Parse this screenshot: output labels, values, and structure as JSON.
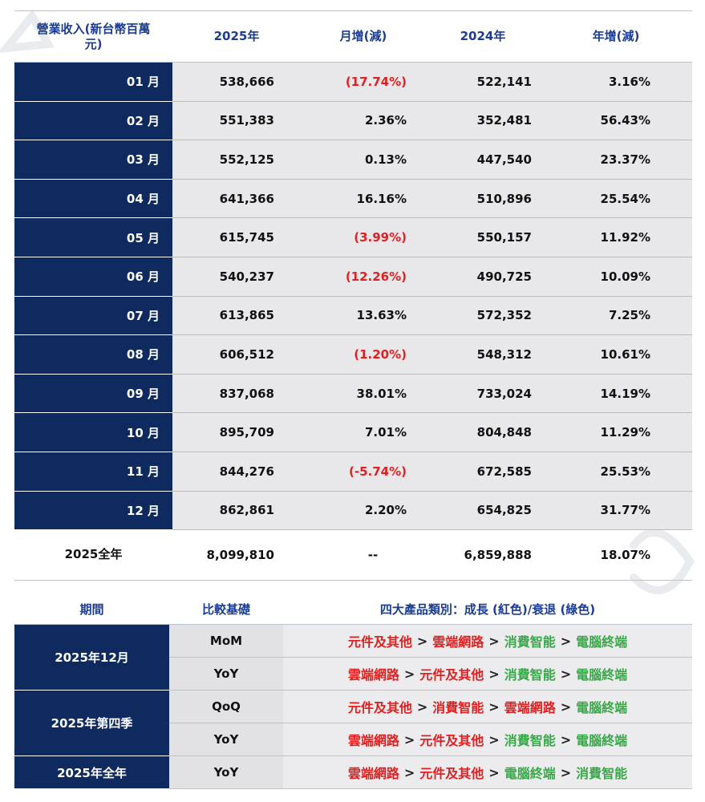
{
  "colors": {
    "header_text": "#1b3c8f",
    "label_bg": "#0f2a5f",
    "negative": "#e02020",
    "growth": "#e02020",
    "decline": "#3aa84a"
  },
  "revenue": {
    "headers": [
      "營業收入(新台幣百萬元)",
      "2025年",
      "月增(減)",
      "2024年",
      "年增(減)"
    ],
    "rows": [
      {
        "month": "01 月",
        "y2025": "538,666",
        "mom": "(17.74%)",
        "y2024": "522,141",
        "yoy": "3.16%",
        "mom_neg": true
      },
      {
        "month": "02 月",
        "y2025": "551,383",
        "mom": "2.36%",
        "y2024": "352,481",
        "yoy": "56.43%",
        "mom_neg": false
      },
      {
        "month": "03 月",
        "y2025": "552,125",
        "mom": "0.13%",
        "y2024": "447,540",
        "yoy": "23.37%",
        "mom_neg": false
      },
      {
        "month": "04 月",
        "y2025": "641,366",
        "mom": "16.16%",
        "y2024": "510,896",
        "yoy": "25.54%",
        "mom_neg": false
      },
      {
        "month": "05 月",
        "y2025": "615,745",
        "mom": "(3.99%)",
        "y2024": "550,157",
        "yoy": "11.92%",
        "mom_neg": true
      },
      {
        "month": "06 月",
        "y2025": "540,237",
        "mom": "(12.26%)",
        "y2024": "490,725",
        "yoy": "10.09%",
        "mom_neg": true
      },
      {
        "month": "07 月",
        "y2025": "613,865",
        "mom": "13.63%",
        "y2024": "572,352",
        "yoy": "7.25%",
        "mom_neg": false
      },
      {
        "month": "08 月",
        "y2025": "606,512",
        "mom": "(1.20%)",
        "y2024": "548,312",
        "yoy": "10.61%",
        "mom_neg": true
      },
      {
        "month": "09 月",
        "y2025": "837,068",
        "mom": "38.01%",
        "y2024": "733,024",
        "yoy": "14.19%",
        "mom_neg": false
      },
      {
        "month": "10 月",
        "y2025": "895,709",
        "mom": "7.01%",
        "y2024": "804,848",
        "yoy": "11.29%",
        "mom_neg": false
      },
      {
        "month": "11 月",
        "y2025": "844,276",
        "mom": "(-5.74%)",
        "y2024": "672,585",
        "yoy": "25.53%",
        "mom_neg": true
      },
      {
        "month": "12 月",
        "y2025": "862,861",
        "mom": "2.20%",
        "y2024": "654,825",
        "yoy": "31.77%",
        "mom_neg": false
      }
    ],
    "total": {
      "label": "2025全年",
      "y2025": "8,099,810",
      "mom": "--",
      "y2024": "6,859,888",
      "yoy": "18.07%"
    }
  },
  "product_trend": {
    "headers": [
      "期間",
      "比較基礎",
      "四大產品類別：成長 (紅色)/衰退 (綠色)"
    ],
    "separator": ">",
    "groups": [
      {
        "period": "2025年12月",
        "rows": [
          {
            "basis": "MoM",
            "items": [
              {
                "name": "元件及其他",
                "trend": "up"
              },
              {
                "name": "雲端網路",
                "trend": "up"
              },
              {
                "name": "消費智能",
                "trend": "down"
              },
              {
                "name": "電腦終端",
                "trend": "down"
              }
            ]
          },
          {
            "basis": "YoY",
            "items": [
              {
                "name": "雲端網路",
                "trend": "up"
              },
              {
                "name": "元件及其他",
                "trend": "up"
              },
              {
                "name": "消費智能",
                "trend": "down"
              },
              {
                "name": "電腦終端",
                "trend": "down"
              }
            ]
          }
        ]
      },
      {
        "period": "2025年第四季",
        "rows": [
          {
            "basis": "QoQ",
            "items": [
              {
                "name": "元件及其他",
                "trend": "up"
              },
              {
                "name": "消費智能",
                "trend": "up"
              },
              {
                "name": "雲端網路",
                "trend": "up"
              },
              {
                "name": "電腦終端",
                "trend": "down"
              }
            ]
          },
          {
            "basis": "YoY",
            "items": [
              {
                "name": "雲端網路",
                "trend": "up"
              },
              {
                "name": "元件及其他",
                "trend": "up"
              },
              {
                "name": "消費智能",
                "trend": "down"
              },
              {
                "name": "電腦終端",
                "trend": "down"
              }
            ]
          }
        ]
      },
      {
        "period": "2025年全年",
        "rows": [
          {
            "basis": "YoY",
            "items": [
              {
                "name": "雲端網路",
                "trend": "up"
              },
              {
                "name": "元件及其他",
                "trend": "up"
              },
              {
                "name": "電腦終端",
                "trend": "down"
              },
              {
                "name": "消費智能",
                "trend": "down"
              }
            ]
          }
        ]
      }
    ]
  }
}
